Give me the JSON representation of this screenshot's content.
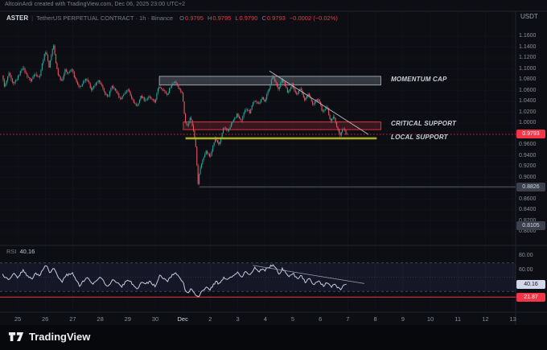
{
  "attribution": "AltcoinArdi created with TradingView.com, Dec 06, 2025 23:00 UTC+2",
  "header": {
    "symbol": "ASTER",
    "separator": "|",
    "description": "TetherUS PERPETUAL CONTRACT · 1h · Binance",
    "ohlc_labels": {
      "o": "O",
      "h": "H",
      "l": "L",
      "c": "C"
    },
    "ohlc": {
      "o": "0.9795",
      "h": "0.9795",
      "l": "0.9790",
      "c": "0.9793"
    },
    "change": "−0.0002 (−0.02%)",
    "currency": "USDT"
  },
  "price_axis": {
    "ticks": [
      "1.1600",
      "1.1400",
      "1.1200",
      "1.1000",
      "1.0800",
      "1.0600",
      "1.0400",
      "1.0200",
      "1.0000",
      "0.9800",
      "0.9600",
      "0.9400",
      "0.9200",
      "0.9000",
      "0.8800",
      "0.8600",
      "0.8400",
      "0.8200",
      "0.8000"
    ],
    "badges": [
      {
        "name": "last-price-badge",
        "text": "0.9793",
        "value": 0.9793,
        "bg": "#f23645",
        "fg": "#ffffff"
      },
      {
        "name": "swing-low-badge",
        "text": "0.8826",
        "value": 0.8826,
        "bg": "#3a3f4b",
        "fg": "#d6d9e0"
      },
      {
        "name": "lower-level-badge",
        "text": "0.8105",
        "value": 0.8105,
        "bg": "#3a3f4b",
        "fg": "#d6d9e0"
      }
    ]
  },
  "rsi_axis": {
    "ticks": [
      "80.00",
      "60.00",
      "40.00",
      "20.00"
    ],
    "badges": [
      {
        "name": "rsi-value-badge",
        "text": "40.16",
        "value": 40.16,
        "bg": "#d3d7e8",
        "fg": "#14161d"
      },
      {
        "name": "rsi-low-badge",
        "text": "21.87",
        "value": 21.87,
        "bg": "#f23645",
        "fg": "#ffffff"
      }
    ]
  },
  "time_axis": {
    "labels": [
      "25",
      "26",
      "27",
      "28",
      "29",
      "30",
      "Dec",
      "2",
      "3",
      "4",
      "5",
      "6",
      "7",
      "8",
      "9",
      "10",
      "11",
      "12",
      "13"
    ],
    "highlight": "Dec"
  },
  "rsi_legend": {
    "label": "RSI",
    "value": "40.16"
  },
  "footer": {
    "brand": "TradingView"
  },
  "colors": {
    "up": "#26a69a",
    "down": "#ef5360",
    "accent_red": "#f23645",
    "support_yellow": "#b3b32a",
    "box_gray_stroke": "#b9bdc7",
    "trendline": "#b7bac2"
  },
  "chart_data": {
    "type": "candlestick",
    "symbol": "ASTER / TetherUS PERPETUAL CONTRACT",
    "exchange": "Binance",
    "interval": "1h",
    "last_price": 0.9793,
    "price_range_visible": [
      0.8,
      1.16
    ],
    "price_grid_step": 0.02,
    "candles_day_range": [
      -0.55,
      11.96
    ],
    "day_zero_label": "Nov 25",
    "price_waypoints": [
      [
        -0.55,
        1.088
      ],
      [
        -0.45,
        1.066
      ],
      [
        -0.3,
        1.092
      ],
      [
        -0.15,
        1.07
      ],
      [
        0,
        1.082
      ],
      [
        0.2,
        1.103
      ],
      [
        0.35,
        1.088
      ],
      [
        0.5,
        1.078
      ],
      [
        0.65,
        1.092
      ],
      [
        0.8,
        1.083
      ],
      [
        0.95,
        1.118
      ],
      [
        1.05,
        1.135
      ],
      [
        1.15,
        1.102
      ],
      [
        1.25,
        1.128
      ],
      [
        1.32,
        1.145
      ],
      [
        1.4,
        1.112
      ],
      [
        1.5,
        1.088
      ],
      [
        1.62,
        1.078
      ],
      [
        1.75,
        1.098
      ],
      [
        1.85,
        1.092
      ],
      [
        2.0,
        1.099
      ],
      [
        2.1,
        1.082
      ],
      [
        2.25,
        1.064
      ],
      [
        2.4,
        1.075
      ],
      [
        2.55,
        1.082
      ],
      [
        2.7,
        1.06
      ],
      [
        2.85,
        1.072
      ],
      [
        3.0,
        1.078
      ],
      [
        3.15,
        1.058
      ],
      [
        3.3,
        1.048
      ],
      [
        3.45,
        1.068
      ],
      [
        3.6,
        1.058
      ],
      [
        3.75,
        1.044
      ],
      [
        3.9,
        1.055
      ],
      [
        4.05,
        1.062
      ],
      [
        4.2,
        1.042
      ],
      [
        4.35,
        1.03
      ],
      [
        4.5,
        1.05
      ],
      [
        4.65,
        1.042
      ],
      [
        4.8,
        1.048
      ],
      [
        5.0,
        1.038
      ],
      [
        5.15,
        1.068
      ],
      [
        5.3,
        1.062
      ],
      [
        5.45,
        1.052
      ],
      [
        5.6,
        1.07
      ],
      [
        5.75,
        1.077
      ],
      [
        5.9,
        1.062
      ],
      [
        6.0,
        1.056
      ],
      [
        6.1,
        1.005
      ],
      [
        6.2,
        0.995
      ],
      [
        6.3,
        1.012
      ],
      [
        6.42,
        0.985
      ],
      [
        6.5,
        0.952
      ],
      [
        6.58,
        0.8826
      ],
      [
        6.63,
        0.915
      ],
      [
        6.72,
        0.928
      ],
      [
        6.85,
        0.948
      ],
      [
        7.0,
        0.938
      ],
      [
        7.1,
        0.955
      ],
      [
        7.2,
        0.972
      ],
      [
        7.35,
        0.96
      ],
      [
        7.5,
        0.992
      ],
      [
        7.65,
        0.985
      ],
      [
        7.8,
        1.0
      ],
      [
        8.0,
        1.016
      ],
      [
        8.15,
        1.002
      ],
      [
        8.3,
        1.028
      ],
      [
        8.45,
        1.02
      ],
      [
        8.6,
        1.042
      ],
      [
        8.75,
        1.035
      ],
      [
        8.9,
        1.046
      ],
      [
        9.0,
        1.041
      ],
      [
        9.15,
        1.062
      ],
      [
        9.28,
        1.088
      ],
      [
        9.4,
        1.075
      ],
      [
        9.5,
        1.06
      ],
      [
        9.62,
        1.082
      ],
      [
        9.75,
        1.068
      ],
      [
        9.85,
        1.055
      ],
      [
        10.0,
        1.072
      ],
      [
        10.15,
        1.052
      ],
      [
        10.3,
        1.066
      ],
      [
        10.45,
        1.042
      ],
      [
        10.6,
        1.055
      ],
      [
        10.75,
        1.032
      ],
      [
        10.9,
        1.044
      ],
      [
        11.0,
        1.038
      ],
      [
        11.1,
        1.018
      ],
      [
        11.25,
        1.032
      ],
      [
        11.4,
        1.002
      ],
      [
        11.5,
        1.014
      ],
      [
        11.62,
        0.992
      ],
      [
        11.75,
        0.978
      ],
      [
        11.85,
        0.992
      ],
      [
        11.96,
        0.9793
      ]
    ],
    "levels": {
      "momentum_cap": {
        "label": "MOMENTUM CAP",
        "type": "box",
        "price_top": 1.086,
        "price_bottom": 1.07,
        "day_start": 5.15,
        "day_end": 13.2
      },
      "critical_support": {
        "label": "CRITICAL SUPPORT",
        "type": "box",
        "price_top": 1.002,
        "price_bottom": 0.988,
        "day_start": 6.02,
        "day_end": 13.2
      },
      "local_support": {
        "label": "LOCAL SUPPORT",
        "type": "line",
        "price": 0.972,
        "day_start": 6.1,
        "day_end": 13.05
      },
      "swing_low": {
        "type": "ray",
        "price": 0.8826,
        "day_start": 6.6
      },
      "last_price_line": {
        "type": "dotted",
        "price": 0.9793
      }
    },
    "trendline": {
      "from_day": 9.15,
      "from_price": 1.096,
      "to_day": 12.75,
      "to_price": 0.979
    },
    "rsi": {
      "value": 40.16,
      "period_low_line": 21.87,
      "band": [
        30,
        70
      ],
      "ticks": [
        80,
        60,
        40,
        20
      ],
      "waypoints": [
        [
          -0.55,
          54
        ],
        [
          -0.35,
          46
        ],
        [
          -0.15,
          56
        ],
        [
          0,
          50
        ],
        [
          0.2,
          60
        ],
        [
          0.35,
          52
        ],
        [
          0.5,
          47
        ],
        [
          0.65,
          56
        ],
        [
          0.8,
          52
        ],
        [
          0.95,
          63
        ],
        [
          1.05,
          67
        ],
        [
          1.15,
          55
        ],
        [
          1.32,
          64
        ],
        [
          1.5,
          48
        ],
        [
          1.62,
          44
        ],
        [
          1.75,
          53
        ],
        [
          2.0,
          55
        ],
        [
          2.1,
          48
        ],
        [
          2.25,
          38
        ],
        [
          2.4,
          45
        ],
        [
          2.55,
          50
        ],
        [
          2.7,
          40
        ],
        [
          2.85,
          46
        ],
        [
          3.0,
          50
        ],
        [
          3.15,
          42
        ],
        [
          3.3,
          37
        ],
        [
          3.45,
          47
        ],
        [
          3.6,
          43
        ],
        [
          3.75,
          36
        ],
        [
          3.9,
          42
        ],
        [
          4.05,
          47
        ],
        [
          4.2,
          38
        ],
        [
          4.35,
          32
        ],
        [
          4.5,
          43
        ],
        [
          4.65,
          40
        ],
        [
          4.8,
          44
        ],
        [
          5.0,
          37
        ],
        [
          5.15,
          52
        ],
        [
          5.3,
          49
        ],
        [
          5.45,
          44
        ],
        [
          5.6,
          53
        ],
        [
          5.75,
          56
        ],
        [
          5.9,
          48
        ],
        [
          6.0,
          45
        ],
        [
          6.1,
          30
        ],
        [
          6.2,
          27
        ],
        [
          6.3,
          36
        ],
        [
          6.42,
          28
        ],
        [
          6.5,
          24
        ],
        [
          6.58,
          21.87
        ],
        [
          6.7,
          30
        ],
        [
          6.85,
          36
        ],
        [
          7.0,
          33
        ],
        [
          7.1,
          38
        ],
        [
          7.2,
          44
        ],
        [
          7.35,
          40
        ],
        [
          7.5,
          50
        ],
        [
          7.65,
          47
        ],
        [
          7.8,
          52
        ],
        [
          8.0,
          57
        ],
        [
          8.15,
          51
        ],
        [
          8.3,
          58
        ],
        [
          8.45,
          54
        ],
        [
          8.6,
          63
        ],
        [
          8.75,
          58
        ],
        [
          8.9,
          62
        ],
        [
          9.0,
          60
        ],
        [
          9.28,
          68
        ],
        [
          9.4,
          61
        ],
        [
          9.5,
          54
        ],
        [
          9.62,
          62
        ],
        [
          9.75,
          56
        ],
        [
          9.85,
          50
        ],
        [
          10.0,
          56
        ],
        [
          10.15,
          47
        ],
        [
          10.3,
          53
        ],
        [
          10.45,
          43
        ],
        [
          10.6,
          49
        ],
        [
          10.75,
          40
        ],
        [
          10.9,
          45
        ],
        [
          11.1,
          38
        ],
        [
          11.25,
          43
        ],
        [
          11.4,
          35
        ],
        [
          11.5,
          41
        ],
        [
          11.62,
          36
        ],
        [
          11.75,
          33
        ],
        [
          11.85,
          39
        ],
        [
          11.96,
          40.16
        ]
      ],
      "trendline": {
        "from_day": 8.55,
        "from_rsi": 66.5,
        "to_day": 12.6,
        "to_rsi": 41
      }
    }
  }
}
